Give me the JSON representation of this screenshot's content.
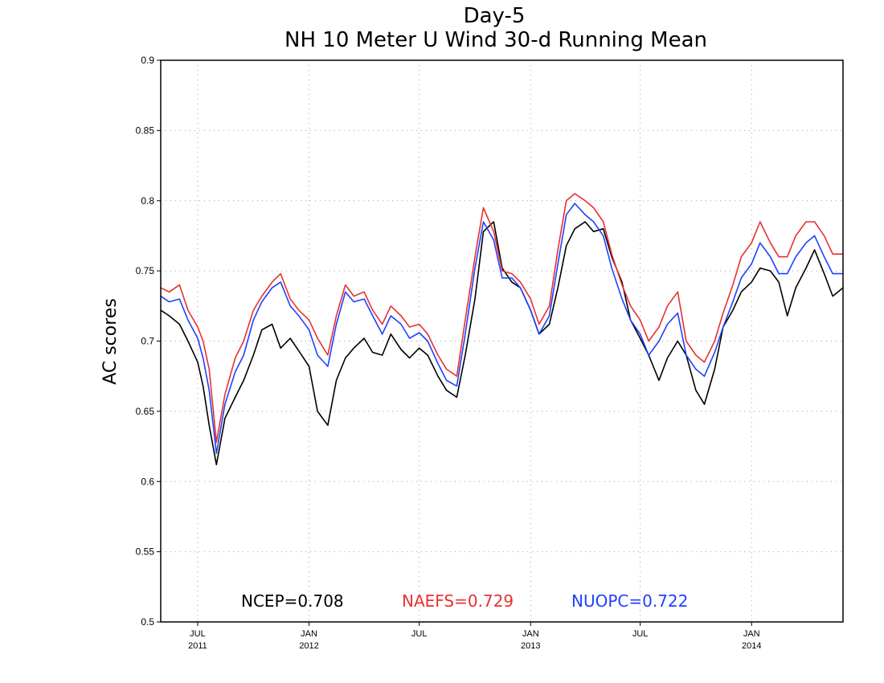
{
  "chart_data": {
    "type": "line",
    "title": "Day-5",
    "subtitle": "NH 10 Meter U Wind 30-d Running Mean",
    "ylabel": "AC scores",
    "xlabel": "",
    "ylim": [
      0.5,
      0.9
    ],
    "yticks": [
      "0.5",
      "0.55",
      "0.6",
      "0.65",
      "0.7",
      "0.75",
      "0.8",
      "0.85",
      "0.9"
    ],
    "xlim": [
      "2011-05-01",
      "2014-06-01"
    ],
    "xticks": [
      {
        "date": "2011-07-01",
        "month": "JUL",
        "year": "2011"
      },
      {
        "date": "2012-01-01",
        "month": "JAN",
        "year": "2012"
      },
      {
        "date": "2012-07-01",
        "month": "JUL",
        "year": ""
      },
      {
        "date": "2013-01-01",
        "month": "JAN",
        "year": "2013"
      },
      {
        "date": "2013-07-01",
        "month": "JUL",
        "year": ""
      },
      {
        "date": "2014-01-01",
        "month": "JAN",
        "year": "2014"
      }
    ],
    "grid": true,
    "legend_position": "bottom",
    "legend": [
      {
        "name": "NCEP",
        "label": "NCEP=0.708",
        "color": "#000000"
      },
      {
        "name": "NAEFS",
        "label": "NAEFS=0.729",
        "color": "#e83030"
      },
      {
        "name": "NUOPC",
        "label": "NUOPC=0.722",
        "color": "#2040ff"
      }
    ],
    "x": [
      "2011-05-01",
      "2011-05-15",
      "2011-06-01",
      "2011-06-15",
      "2011-07-01",
      "2011-07-10",
      "2011-07-20",
      "2011-08-01",
      "2011-08-15",
      "2011-09-01",
      "2011-09-15",
      "2011-10-01",
      "2011-10-15",
      "2011-11-01",
      "2011-11-15",
      "2011-12-01",
      "2011-12-15",
      "2012-01-01",
      "2012-01-15",
      "2012-02-01",
      "2012-02-15",
      "2012-03-01",
      "2012-03-15",
      "2012-04-01",
      "2012-04-15",
      "2012-05-01",
      "2012-05-15",
      "2012-06-01",
      "2012-06-15",
      "2012-07-01",
      "2012-07-15",
      "2012-08-01",
      "2012-08-15",
      "2012-09-01",
      "2012-09-15",
      "2012-10-01",
      "2012-10-15",
      "2012-11-01",
      "2012-11-15",
      "2012-12-01",
      "2012-12-15",
      "2013-01-01",
      "2013-01-15",
      "2013-02-01",
      "2013-02-15",
      "2013-03-01",
      "2013-03-15",
      "2013-04-01",
      "2013-04-15",
      "2013-05-01",
      "2013-05-15",
      "2013-06-01",
      "2013-06-15",
      "2013-07-01",
      "2013-07-15",
      "2013-08-01",
      "2013-08-15",
      "2013-09-01",
      "2013-09-15",
      "2013-10-01",
      "2013-10-15",
      "2013-11-01",
      "2013-11-15",
      "2013-12-01",
      "2013-12-15",
      "2014-01-01",
      "2014-01-15",
      "2014-02-01",
      "2014-02-15",
      "2014-03-01",
      "2014-03-15",
      "2014-04-01",
      "2014-04-15",
      "2014-05-01",
      "2014-05-15",
      "2014-06-01"
    ],
    "series": [
      {
        "name": "NCEP",
        "color": "#000000",
        "values": [
          0.722,
          0.718,
          0.712,
          0.7,
          0.685,
          0.668,
          0.64,
          0.612,
          0.645,
          0.66,
          0.672,
          0.69,
          0.708,
          0.712,
          0.695,
          0.702,
          0.693,
          0.682,
          0.65,
          0.64,
          0.672,
          0.688,
          0.695,
          0.702,
          0.692,
          0.69,
          0.705,
          0.694,
          0.688,
          0.695,
          0.69,
          0.675,
          0.665,
          0.66,
          0.69,
          0.73,
          0.778,
          0.785,
          0.752,
          0.742,
          0.738,
          0.722,
          0.705,
          0.712,
          0.738,
          0.768,
          0.78,
          0.785,
          0.778,
          0.78,
          0.76,
          0.742,
          0.715,
          0.702,
          0.69,
          0.672,
          0.688,
          0.7,
          0.69,
          0.665,
          0.655,
          0.68,
          0.71,
          0.722,
          0.735,
          0.742,
          0.752,
          0.75,
          0.742,
          0.718,
          0.738,
          0.752,
          0.765,
          0.748,
          0.732,
          0.738
        ]
      },
      {
        "name": "NAEFS",
        "color": "#e83030",
        "values": [
          0.738,
          0.735,
          0.74,
          0.722,
          0.71,
          0.7,
          0.68,
          0.628,
          0.662,
          0.688,
          0.7,
          0.722,
          0.732,
          0.742,
          0.748,
          0.73,
          0.722,
          0.715,
          0.702,
          0.69,
          0.718,
          0.74,
          0.732,
          0.735,
          0.722,
          0.712,
          0.725,
          0.718,
          0.71,
          0.712,
          0.705,
          0.69,
          0.68,
          0.675,
          0.715,
          0.76,
          0.795,
          0.778,
          0.75,
          0.748,
          0.742,
          0.73,
          0.712,
          0.725,
          0.765,
          0.8,
          0.805,
          0.8,
          0.795,
          0.785,
          0.762,
          0.74,
          0.725,
          0.715,
          0.7,
          0.71,
          0.725,
          0.735,
          0.7,
          0.69,
          0.685,
          0.7,
          0.72,
          0.74,
          0.76,
          0.77,
          0.785,
          0.77,
          0.76,
          0.76,
          0.775,
          0.785,
          0.785,
          0.775,
          0.762,
          0.762
        ]
      },
      {
        "name": "NUOPC",
        "color": "#2040ff",
        "values": [
          0.732,
          0.728,
          0.73,
          0.715,
          0.702,
          0.688,
          0.665,
          0.62,
          0.655,
          0.678,
          0.69,
          0.715,
          0.728,
          0.738,
          0.742,
          0.725,
          0.718,
          0.708,
          0.69,
          0.682,
          0.712,
          0.735,
          0.728,
          0.73,
          0.718,
          0.705,
          0.718,
          0.712,
          0.702,
          0.706,
          0.7,
          0.684,
          0.672,
          0.668,
          0.705,
          0.752,
          0.785,
          0.772,
          0.745,
          0.745,
          0.738,
          0.722,
          0.705,
          0.718,
          0.755,
          0.79,
          0.798,
          0.79,
          0.785,
          0.775,
          0.752,
          0.73,
          0.715,
          0.705,
          0.69,
          0.7,
          0.712,
          0.72,
          0.69,
          0.68,
          0.675,
          0.692,
          0.71,
          0.728,
          0.745,
          0.755,
          0.77,
          0.76,
          0.748,
          0.748,
          0.76,
          0.77,
          0.775,
          0.76,
          0.748,
          0.748
        ]
      }
    ]
  }
}
